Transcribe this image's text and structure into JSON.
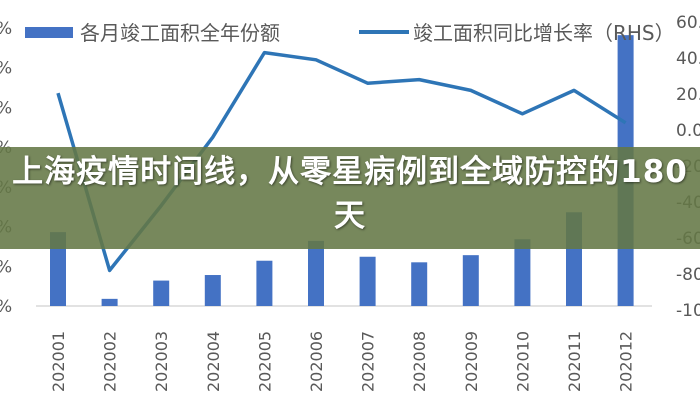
{
  "overlay": {
    "title": "上海疫情时间线，从零星病例到全域防控的180天"
  },
  "colors": {
    "bar": "#4472C4",
    "line": "#2E75B6",
    "banner": "#647846",
    "axis_text": "#595959"
  },
  "chart_data": {
    "type": "bar+line",
    "title": "",
    "categories": [
      "202001",
      "202002",
      "202003",
      "202004",
      "202005",
      "202006",
      "202007",
      "202008",
      "202009",
      "202010",
      "202011",
      "202012"
    ],
    "series": [
      {
        "name": "各月竣工面积全年份额",
        "type": "bar",
        "axis": "left",
        "unit": "%",
        "values": [
          9.3,
          0.9,
          3.2,
          3.9,
          5.7,
          8.2,
          6.2,
          5.5,
          6.4,
          8.4,
          11.8,
          34.1
        ]
      },
      {
        "name": "竣工面积同比增长率（RHS）",
        "type": "line",
        "axis": "right",
        "unit": "%",
        "values": [
          20.5,
          -78,
          -42,
          -4,
          43,
          39,
          26,
          28,
          22,
          9,
          22,
          4
        ]
      }
    ],
    "left_axis": {
      "ylim": [
        0,
        35
      ],
      "ticks": [
        "%",
        "%",
        "%",
        "%",
        "%",
        "%",
        "%",
        "%"
      ],
      "note": "labels cut off; only % visible"
    },
    "right_axis": {
      "ylim": [
        -100,
        60
      ],
      "ticks": [
        "60.",
        "40.",
        "20.",
        "0.0",
        "-20",
        "-40",
        "-60",
        "-80",
        "-10"
      ]
    },
    "legend": [
      {
        "label": "各月竣工面积全年份额",
        "type": "bar"
      },
      {
        "label": "竣工面积同比增长率（RHS）",
        "type": "line"
      }
    ],
    "legend_position": "top",
    "grid": false
  }
}
